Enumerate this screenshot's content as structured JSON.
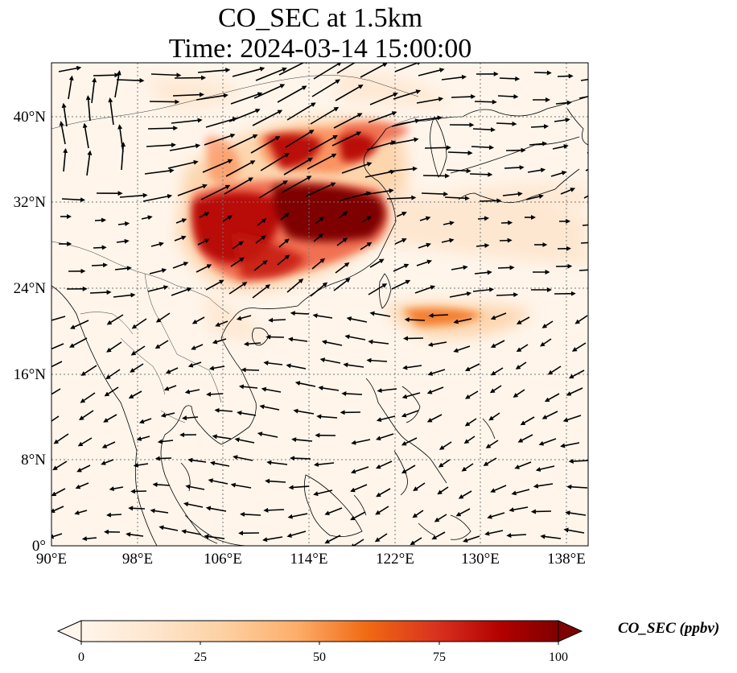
{
  "title": {
    "line1": "CO_SEC at 1.5km",
    "line2": "Time: 2024-03-14 15:00:00"
  },
  "map": {
    "lon_range": [
      90,
      140
    ],
    "lat_range": [
      0,
      45
    ],
    "gridlines": true,
    "x_ticks": [
      "90°E",
      "98°E",
      "106°E",
      "114°E",
      "122°E",
      "130°E",
      "138°E"
    ],
    "y_ticks": [
      "0°",
      "8°N",
      "16°N",
      "24°N",
      "32°N",
      "40°N"
    ],
    "field": "CO_SEC",
    "overlay": "wind vectors",
    "high_concentration_regions": [
      {
        "lon_range": [
          110,
          120
        ],
        "lat_range": [
          28,
          33
        ],
        "level": "~100 ppbv"
      },
      {
        "lon_range": [
          103,
          113
        ],
        "lat_range": [
          26,
          33
        ],
        "level": "~75-100 ppbv"
      },
      {
        "lon_range": [
          115,
          122
        ],
        "lat_range": [
          34,
          39
        ],
        "level": "~75 ppbv"
      },
      {
        "lon_range": [
          120,
          127
        ],
        "lat_range": [
          19,
          22
        ],
        "level": "~50 ppbv"
      }
    ]
  },
  "colorbar": {
    "label": "CO_SEC (ppbv)",
    "min": 0,
    "max": 100,
    "ticks": [
      "0",
      "25",
      "50",
      "75",
      "100"
    ],
    "extend": "both",
    "colormap": [
      "#fff5eb",
      "#fee6ce",
      "#fdd0a2",
      "#fdae6b",
      "#fd8d3c",
      "#f16913",
      "#d94801",
      "#a60000",
      "#7f0000"
    ]
  }
}
